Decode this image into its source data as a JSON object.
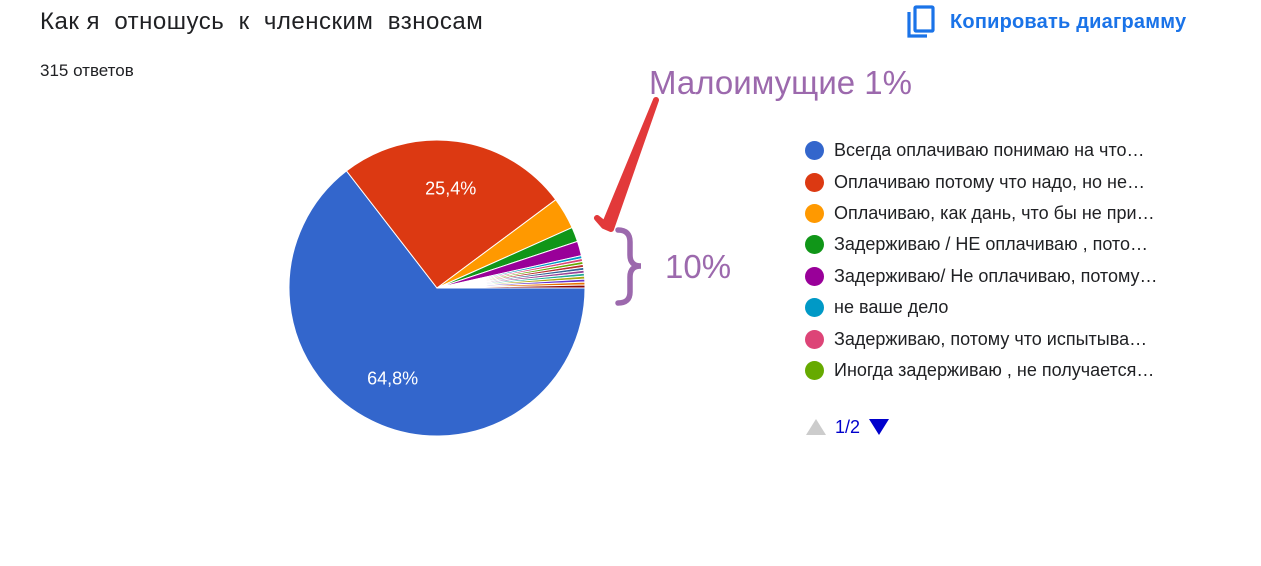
{
  "header": {
    "title": "Как я  отношусь  к  членским  взносам",
    "responses": "315 ответов",
    "copy_label": "Копировать диаграмму",
    "copy_icon": "copy-icon"
  },
  "annotations": {
    "arrow_text": "Малоимущие 1%",
    "brace_text": "10%",
    "color": "#9c69ad",
    "arrow_color": "#e2393a"
  },
  "legend_pager": {
    "label": "1/2",
    "prev_icon": "triangle-up-icon",
    "next_icon": "triangle-down-icon"
  },
  "chart_data": {
    "type": "pie",
    "total_responses": 315,
    "start_angle": "3 o'clock, clockwise",
    "legend_position": "right",
    "slices": [
      {
        "label": "Всегда оплачиваю понимаю на что…",
        "value": 64.8,
        "color": "#3366cc",
        "data_label": "64,8%"
      },
      {
        "label": "Оплачиваю потому что надо, но не…",
        "value": 25.4,
        "color": "#dc3912",
        "data_label": "25,4%"
      },
      {
        "label": "Оплачиваю, как дань, что бы не при…",
        "value": 3.5,
        "color": "#ff9900",
        "data_label": ""
      },
      {
        "label": "Задерживаю / НЕ оплачиваю , пото…",
        "value": 1.6,
        "color": "#109618",
        "data_label": ""
      },
      {
        "label": "Задерживаю/ Не оплачиваю, потому…",
        "value": 1.6,
        "color": "#990099",
        "data_label": ""
      },
      {
        "label": "не ваше дело",
        "value": 0.32,
        "color": "#0099c6",
        "data_label": ""
      },
      {
        "label": "Задерживаю, потому что испытыва…",
        "value": 0.32,
        "color": "#dd4477",
        "data_label": ""
      },
      {
        "label": "Иногда задерживаю , не получается…",
        "value": 0.32,
        "color": "#66aa00",
        "data_label": ""
      },
      {
        "label": "",
        "value": 0.32,
        "color": "#b82e2e",
        "data_label": ""
      },
      {
        "label": "",
        "value": 0.32,
        "color": "#316395",
        "data_label": ""
      },
      {
        "label": "",
        "value": 0.32,
        "color": "#994499",
        "data_label": ""
      },
      {
        "label": "",
        "value": 0.32,
        "color": "#22aa99",
        "data_label": ""
      },
      {
        "label": "",
        "value": 0.32,
        "color": "#aaaa11",
        "data_label": ""
      },
      {
        "label": "",
        "value": 0.32,
        "color": "#6633cc",
        "data_label": ""
      },
      {
        "label": "",
        "value": 0.32,
        "color": "#e67300",
        "data_label": ""
      },
      {
        "label": "",
        "value": 0.32,
        "color": "#8b0707",
        "data_label": ""
      }
    ]
  }
}
